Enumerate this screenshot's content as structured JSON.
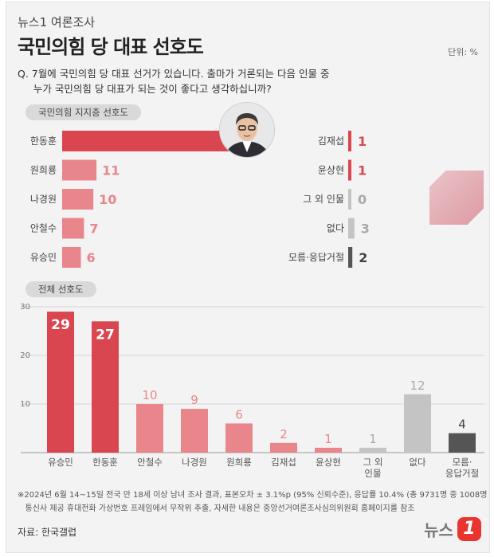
{
  "brand": "뉴스1 여론조사",
  "title": "국민의힘 당 대표 선호도",
  "unit_label": "단위: %",
  "question": "Q. 7월에 국민의힘 당 대표 선거가 있습니다. 출마가 거론되는 다음 인물 중\n     누가 국민의힘 당 대표가 되는 것이 좋다고 생각하십니까?",
  "section1_label": "국민의힘 지지층 선호도",
  "section2_label": "전체 선호도",
  "footer_note": "※2024년 6월 14~15일 전국 만 18세 이상 남녀 조사 결과, 표본오차 ± 3.1%p (95% 신뢰수준), 응답률 10.4% (총 9731명 중 1008명 응답 완료),\n   통신사 제공 휴대전화 가상번호 프레임에서 무작위 추출, 자세한 내용은 중앙선거여론조사심의위원회 홈페이지를 참조",
  "source": "자료: 한국갤럽",
  "logo_text": "뉴스",
  "logo_mark": "1",
  "colors": {
    "red": "#d9464f",
    "pink": "#e8868c",
    "gray": "#c4c4c4",
    "dark": "#555555"
  },
  "chart_data": [
    {
      "type": "bar",
      "orientation": "horizontal",
      "title": "국민의힘 지지층 선호도",
      "categories": [
        "한동훈",
        "원희룡",
        "나경원",
        "안철수",
        "유승민",
        "김재섭",
        "윤상현",
        "그 외 인물",
        "없다",
        "모름·응답거절"
      ],
      "values": [
        59,
        11,
        10,
        7,
        6,
        1,
        1,
        0,
        3,
        2
      ],
      "value_labels": [
        "59",
        "11",
        "10",
        "7",
        "6",
        "1",
        "1",
        "0",
        "3",
        "2"
      ],
      "colors": [
        "#d9464f",
        "#e8868c",
        "#e8868c",
        "#e8868c",
        "#e8868c",
        "#d9464f",
        "#d9464f",
        "#c4c4c4",
        "#c4c4c4",
        "#555555"
      ]
    },
    {
      "type": "bar",
      "orientation": "vertical",
      "title": "전체 선호도",
      "categories": [
        "유승민",
        "한동훈",
        "안철수",
        "나경원",
        "원희룡",
        "김재섭",
        "윤상현",
        "그 외\n인물",
        "없다",
        "모름·\n응답거절"
      ],
      "values": [
        29,
        27,
        10,
        9,
        6,
        2,
        1,
        1,
        12,
        4
      ],
      "value_labels": [
        "29",
        "27",
        "10",
        "9",
        "6",
        "2",
        "1",
        "1",
        "12",
        "4"
      ],
      "colors": [
        "#d9464f",
        "#d9464f",
        "#e8868c",
        "#e8868c",
        "#e8868c",
        "#e8868c",
        "#e8868c",
        "#c4c4c4",
        "#c4c4c4",
        "#555555"
      ],
      "yticks": [
        "30",
        "20",
        "10"
      ],
      "ylim": [
        0,
        30
      ]
    }
  ]
}
